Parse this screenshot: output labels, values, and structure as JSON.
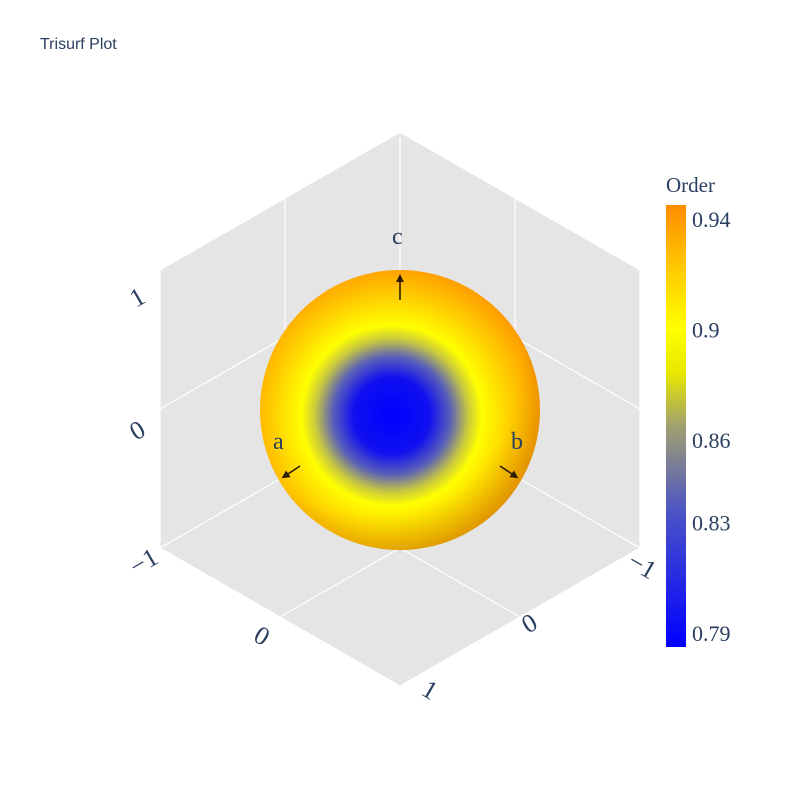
{
  "chart_data": {
    "type": "surface",
    "title": "Trisurf Plot",
    "surface": "sphere",
    "scene": {
      "background": "#e5e5e5",
      "gridlines": true,
      "x": {
        "tick_labels": [
          "−1",
          "0",
          "1"
        ]
      },
      "y": {
        "tick_labels": [
          "−1",
          "0",
          "1"
        ]
      },
      "z": {
        "tick_labels": [
          "−1",
          "0",
          "1"
        ]
      }
    },
    "arrows": [
      {
        "label": "a"
      },
      {
        "label": "b"
      },
      {
        "label": "c"
      }
    ],
    "colorbar": {
      "title": "Order",
      "tick_labels": [
        "0.94",
        "0.9",
        "0.86",
        "0.83",
        "0.79"
      ],
      "tick_values": [
        0.94,
        0.9,
        0.86,
        0.83,
        0.79
      ],
      "range": [
        0.785,
        0.945
      ],
      "colorscale": [
        [
          0.0,
          "#0000ff"
        ],
        [
          0.3,
          "#4a52c8"
        ],
        [
          0.5,
          "#a0a070"
        ],
        [
          0.62,
          "#e8e800"
        ],
        [
          0.72,
          "#ffff00"
        ],
        [
          0.88,
          "#ffc000"
        ],
        [
          1.0,
          "#ff8c00"
        ]
      ]
    }
  }
}
